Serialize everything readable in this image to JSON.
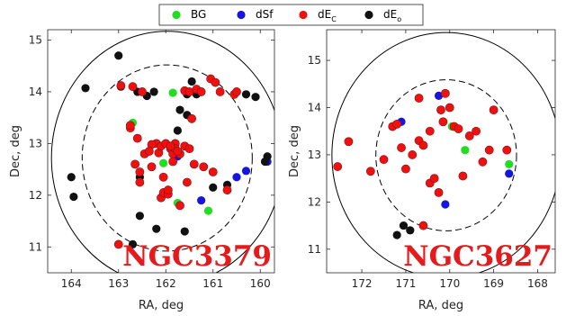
{
  "chart_data": [
    {
      "type": "scatter",
      "title": "NGC3379",
      "xlabel": "RA, deg",
      "ylabel": "Dec, deg",
      "xlim": [
        164.5,
        159.7
      ],
      "ylim": [
        10.5,
        15.2
      ],
      "x_reversed": true,
      "xticks": [
        "164",
        "163",
        "162",
        "161",
        "160"
      ],
      "yticks": [
        "11",
        "12",
        "13",
        "14",
        "15"
      ],
      "circles": [
        {
          "center": [
            161.97,
            12.72
          ],
          "radius_deg": 2.45,
          "style": "solid"
        },
        {
          "center": [
            161.97,
            12.72
          ],
          "radius_deg": 1.8,
          "style": "dashed"
        }
      ],
      "series": [
        {
          "name": "BG",
          "color": "#22dd22",
          "x": [
            162.7,
            161.85,
            162.05,
            161.1,
            161.75
          ],
          "y": [
            13.4,
            13.98,
            12.62,
            11.7,
            11.85
          ]
        },
        {
          "name": "dSf",
          "color": "#1515dd",
          "x": [
            161.75,
            161.25,
            160.5,
            160.3,
            159.85
          ],
          "y": [
            12.75,
            11.9,
            12.35,
            12.47,
            12.65
          ]
        },
        {
          "name": "dE_C",
          "color": "#ee1111",
          "x": [
            163.0,
            162.75,
            162.65,
            162.55,
            162.3,
            162.2,
            162.15,
            162.1,
            162.05,
            161.95,
            161.9,
            161.85,
            161.8,
            161.7,
            161.6,
            161.5,
            161.45,
            161.35,
            161.25,
            161.05,
            160.95,
            160.85,
            160.7,
            160.55,
            160.5,
            162.7,
            162.5,
            162.3,
            162.1,
            161.95,
            161.8,
            161.75,
            161.6,
            161.5,
            161.4,
            161.2,
            162.75,
            162.6,
            162.45,
            162.0,
            161.9,
            161.7,
            162.95,
            162.35,
            162.55,
            161.85,
            162.05,
            161.55,
            161.0
          ],
          "y": [
            11.05,
            13.3,
            12.6,
            12.25,
            12.55,
            13.0,
            12.82,
            11.95,
            12.05,
            12.02,
            12.9,
            12.8,
            13.0,
            12.8,
            14.02,
            14.0,
            13.48,
            14.05,
            14.0,
            14.25,
            14.18,
            14.0,
            12.1,
            13.95,
            14.0,
            14.1,
            14.0,
            12.98,
            12.95,
            12.1,
            12.9,
            12.85,
            12.95,
            12.9,
            12.6,
            12.55,
            13.35,
            13.1,
            12.8,
            13.0,
            12.95,
            11.8,
            14.12,
            12.85,
            12.45,
            12.65,
            12.35,
            12.25,
            12.45
          ]
        },
        {
          "name": "dE_o",
          "color": "#111111",
          "x": [
            163.0,
            163.7,
            164.0,
            163.95,
            162.95,
            162.6,
            162.4,
            162.25,
            161.75,
            161.55,
            161.7,
            161.55,
            161.35,
            161.45,
            161.25,
            161.0,
            160.7,
            160.3,
            160.1,
            159.85,
            159.9,
            162.2,
            162.55,
            162.55,
            161.6,
            162.7
          ],
          "y": [
            14.7,
            14.07,
            12.35,
            11.97,
            14.1,
            14.0,
            13.92,
            14.0,
            13.25,
            13.55,
            13.65,
            13.95,
            13.95,
            14.2,
            14.0,
            12.15,
            12.2,
            13.95,
            13.9,
            12.75,
            12.65,
            11.35,
            11.6,
            12.35,
            11.3,
            11.05
          ]
        }
      ],
      "annotation": "NGC3379"
    },
    {
      "type": "scatter",
      "title": "NGC3627",
      "xlabel": "RA, deg",
      "ylabel": "Dec, deg",
      "xlim": [
        172.8,
        167.6
      ],
      "ylim": [
        10.5,
        15.65
      ],
      "x_reversed": true,
      "xticks": [
        "172",
        "171",
        "170",
        "169",
        "168"
      ],
      "yticks": [
        "11",
        "12",
        "13",
        "14",
        "15"
      ],
      "circles": [
        {
          "center": [
            170.08,
            12.99
          ],
          "radius_deg": 2.6,
          "style": "solid"
        },
        {
          "center": [
            170.08,
            12.99
          ],
          "radius_deg": 1.6,
          "style": "dashed"
        }
      ],
      "series": [
        {
          "name": "BG",
          "color": "#22dd22",
          "x": [
            169.95,
            169.65,
            168.65
          ],
          "y": [
            13.6,
            13.1,
            12.8
          ]
        },
        {
          "name": "dSf",
          "color": "#1515dd",
          "x": [
            171.1,
            170.25,
            170.1,
            168.65
          ],
          "y": [
            13.7,
            14.25,
            11.95,
            12.6
          ]
        },
        {
          "name": "dE_C",
          "color": "#ee1111",
          "x": [
            172.55,
            172.3,
            171.8,
            171.5,
            171.3,
            171.2,
            171.0,
            170.85,
            170.7,
            170.6,
            170.45,
            170.35,
            170.25,
            170.2,
            170.1,
            170.0,
            169.9,
            169.8,
            169.7,
            169.55,
            169.4,
            169.25,
            169.1,
            169.0,
            168.7,
            170.7,
            170.6,
            170.45,
            171.1,
            170.15
          ],
          "y": [
            12.75,
            13.28,
            12.65,
            12.9,
            13.6,
            13.65,
            12.7,
            13.0,
            14.2,
            11.5,
            12.4,
            12.5,
            12.2,
            13.95,
            14.3,
            14.0,
            13.6,
            13.55,
            12.55,
            13.4,
            13.5,
            12.85,
            13.1,
            13.95,
            13.1,
            13.3,
            13.2,
            13.5,
            13.15,
            13.7
          ]
        },
        {
          "name": "dE_o",
          "color": "#111111",
          "x": [
            171.05,
            170.9,
            171.2
          ],
          "y": [
            11.5,
            11.4,
            11.3
          ]
        }
      ],
      "annotation": "NGC3627"
    }
  ],
  "legend": {
    "placement": "top-center",
    "entries": [
      {
        "label": "BG",
        "sub": "",
        "color": "#22dd22"
      },
      {
        "label": "dSf",
        "sub": "",
        "color": "#1515dd"
      },
      {
        "label": "dE",
        "sub": "C",
        "color": "#ee1111"
      },
      {
        "label": "dE",
        "sub": "o",
        "color": "#111111"
      }
    ]
  }
}
